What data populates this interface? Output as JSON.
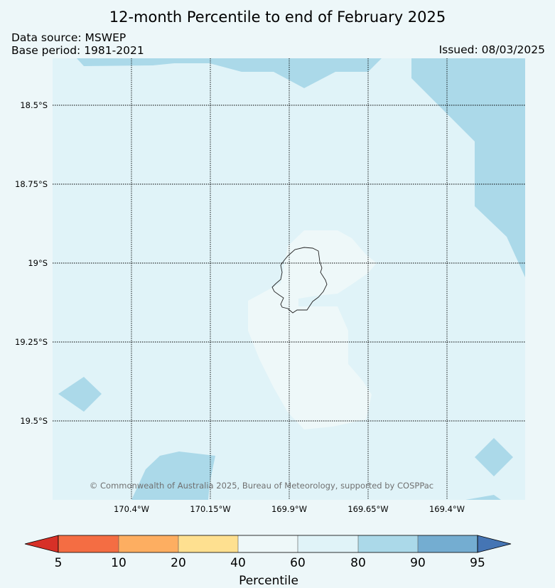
{
  "title": "12-month Percentile to end of February 2025",
  "data_source": "Data source: MSWEP",
  "base_period": "Base period: 1981-2021",
  "issued": "Issued: 08/03/2025",
  "copyright": "© Commonwealth of Australia 2025, Bureau of Meteorology, supported by COSPPac",
  "latitude_labels": [
    "18.5°S",
    "18.75°S",
    "19°S",
    "19.25°S",
    "19.5°S"
  ],
  "longitude_labels": [
    "170.4°W",
    "170.15°W",
    "169.9°W",
    "169.65°W",
    "169.4°W"
  ],
  "colorbar": {
    "label": "Percentile",
    "ticks": [
      "5",
      "10",
      "20",
      "40",
      "60",
      "80",
      "90",
      "95"
    ],
    "colors": {
      "below_5": "#d73027",
      "5_10": "#f46d43",
      "10_20": "#fdae61",
      "20_40": "#fee090",
      "40_60": "#eef8f9",
      "60_80": "#e0f3f8",
      "80_90": "#abd9e9",
      "90_95": "#74add1",
      "above_95": "#4575b4"
    }
  },
  "map_colors": {
    "background": "#e0f3f8",
    "near_normal": "#eef8f9",
    "above_normal": "#abd9e9",
    "island_outline": "#222222"
  }
}
